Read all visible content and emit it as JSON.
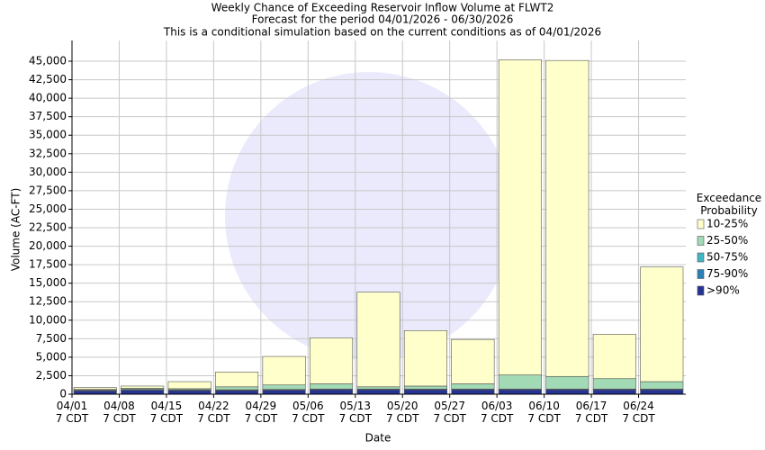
{
  "chart_data": {
    "type": "stacked_bar",
    "title": [
      "Weekly Chance of Exceeding Reservoir Inflow Volume at FLWT2",
      "Forecast for the period 04/01/2026 - 06/30/2026",
      "This is a conditional simulation based on the current conditions as of 04/01/2026"
    ],
    "x_label": "Date",
    "y_label": "Volume (AC-FT)",
    "legend_title": "Exceedance Probability",
    "categories": [
      "04/01 7 CDT",
      "04/08 7 CDT",
      "04/15 7 CDT",
      "04/22 7 CDT",
      "04/29 7 CDT",
      "05/06 7 CDT",
      "05/13 7 CDT",
      "05/20 7 CDT",
      "05/27 7 CDT",
      "06/03 7 CDT",
      "06/10 7 CDT",
      "06/17 7 CDT",
      "06/24 7 CDT"
    ],
    "series": [
      {
        "name": ">90%",
        "color": "#253494",
        "values": [
          450,
          550,
          500,
          500,
          550,
          600,
          600,
          600,
          600,
          600,
          600,
          600,
          600
        ]
      },
      {
        "name": "75-90%",
        "color": "#2c7fb8",
        "values": [
          50,
          50,
          50,
          50,
          50,
          50,
          50,
          50,
          50,
          50,
          50,
          50,
          50
        ]
      },
      {
        "name": "50-75%",
        "color": "#41b6c4",
        "values": [
          50,
          50,
          50,
          50,
          50,
          50,
          50,
          50,
          50,
          50,
          50,
          50,
          50
        ]
      },
      {
        "name": "25-50%",
        "color": "#a1dab4",
        "values": [
          100,
          150,
          150,
          400,
          600,
          700,
          300,
          400,
          700,
          1900,
          1700,
          1400,
          1000
        ]
      },
      {
        "name": "10-25%",
        "color": "#ffffcc",
        "values": [
          250,
          300,
          950,
          2000,
          3850,
          6200,
          12800,
          7500,
          6000,
          42600,
          42700,
          6000,
          15500
        ]
      }
    ],
    "ylim": [
      0,
      47800
    ],
    "yticks": [
      0,
      {
        "value": 2500,
        "label": "2,500"
      },
      {
        "value": 5000,
        "label": "5,000"
      },
      {
        "value": 7500,
        "label": "7,500"
      },
      {
        "value": 10000,
        "label": "10,000"
      },
      {
        "value": 12500,
        "label": "12,500"
      },
      {
        "value": 15000,
        "label": "15,000"
      },
      {
        "value": 17500,
        "label": "17,500"
      },
      {
        "value": 20000,
        "label": "20,000"
      },
      {
        "value": 22500,
        "label": "22,500"
      },
      {
        "value": 25000,
        "label": "25,000"
      },
      {
        "value": 27500,
        "label": "27,500"
      },
      {
        "value": 30000,
        "label": "30,000"
      },
      {
        "value": 32500,
        "label": "32,500"
      },
      {
        "value": 35000,
        "label": "35,000"
      },
      {
        "value": 37500,
        "label": "37,500"
      },
      {
        "value": 40000,
        "label": "40,000"
      },
      {
        "value": 42500,
        "label": "42,500"
      },
      {
        "value": 45000,
        "label": "45,000"
      }
    ],
    "grid": true
  }
}
